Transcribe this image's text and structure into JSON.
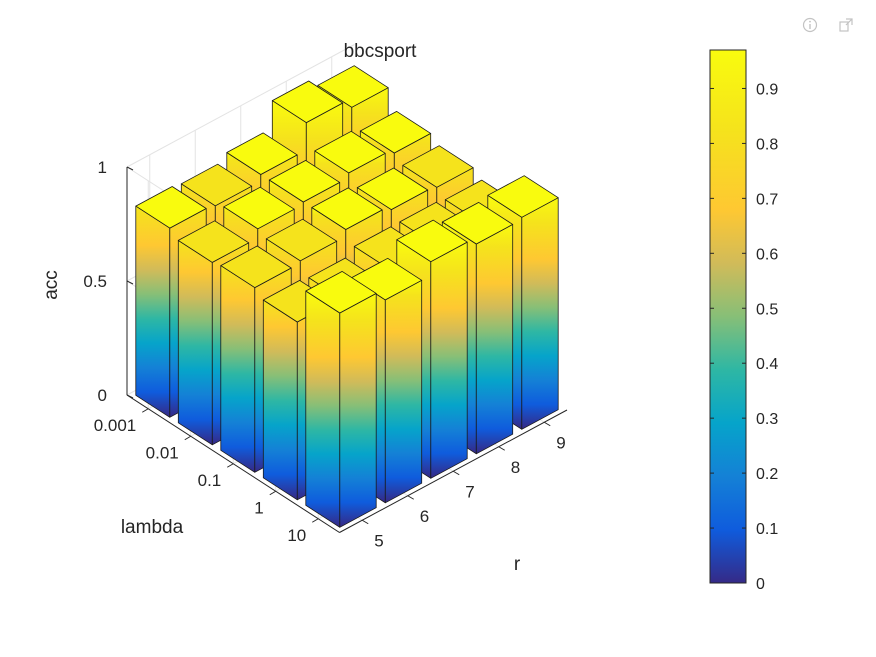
{
  "toolbar": {
    "icons": [
      "info-icon",
      "export-icon"
    ]
  },
  "chart_data": {
    "type": "bar3d",
    "title": "bbcsport",
    "xlabel": "r",
    "ylabel": "lambda",
    "zlabel": "acc",
    "x_ticks": [
      "5",
      "6",
      "7",
      "8",
      "9"
    ],
    "y_ticks": [
      "0.001",
      "0.01",
      "0.1",
      "1",
      "10"
    ],
    "z_ticks": [
      "0",
      "0.5",
      "1"
    ],
    "zlim": [
      0,
      1
    ],
    "colormap": "parula",
    "values": [
      [
        0.83,
        0.82,
        0.85,
        0.97,
        0.93
      ],
      [
        0.8,
        0.84,
        0.85,
        0.87,
        0.85
      ],
      [
        0.81,
        0.82,
        0.85,
        0.83,
        0.82
      ],
      [
        0.78,
        0.77,
        0.8,
        0.8,
        0.79
      ],
      [
        0.94,
        0.89,
        0.95,
        0.92,
        0.93
      ]
    ],
    "colorbar": {
      "ticks": [
        "0",
        "0.1",
        "0.2",
        "0.3",
        "0.4",
        "0.5",
        "0.6",
        "0.7",
        "0.8",
        "0.9"
      ],
      "range": [
        0,
        0.97
      ]
    },
    "grid": true
  }
}
